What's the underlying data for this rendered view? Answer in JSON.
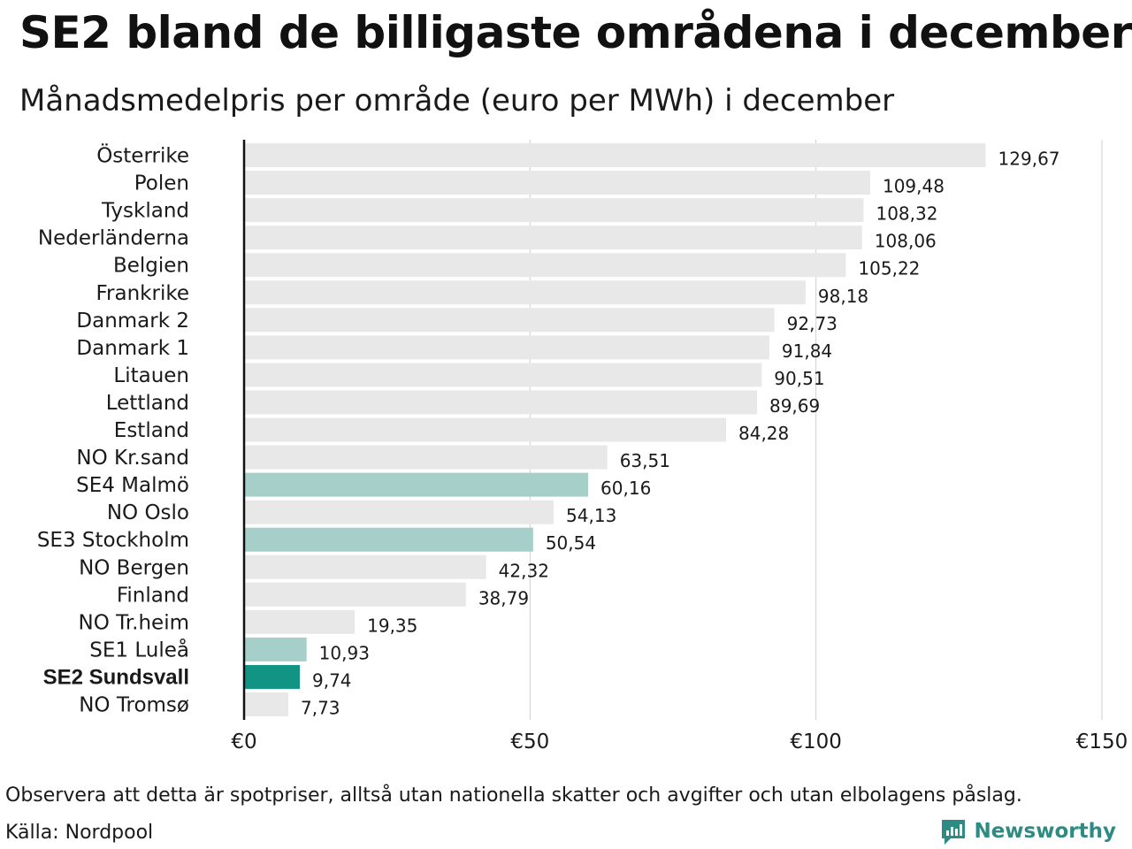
{
  "title": "SE2 bland de billigaste områdena i december",
  "subtitle": "Månadsmedelpris per område (euro per MWh) i december",
  "footer": {
    "note": "Observera att detta är spotpriser, alltså utan nationella skatter och avgifter och utan elbolagens påslag.",
    "source": "Källa: Nordpool"
  },
  "brand": {
    "name": "Newsworthy",
    "icon": "newsworthy-logo-icon",
    "color": "#2e8b84"
  },
  "chart_data": {
    "type": "bar",
    "orientation": "horizontal",
    "categories": [
      "Österrike",
      "Polen",
      "Tyskland",
      "Nederländerna",
      "Belgien",
      "Frankrike",
      "Danmark  2",
      "Danmark  1",
      "Litauen",
      "Lettland",
      "Estland",
      "NO Kr.sand",
      "SE4  Malmö",
      "NO Oslo",
      "SE3  Stockholm",
      "NO Bergen",
      "Finland",
      "NO Tr.heim",
      "SE1  Luleå",
      "SE2 Sundsvall",
      "NO Tromsø"
    ],
    "values": [
      129.67,
      109.48,
      108.32,
      108.06,
      105.22,
      98.18,
      92.73,
      91.84,
      90.51,
      89.69,
      84.28,
      63.51,
      60.16,
      54.13,
      50.54,
      42.32,
      38.79,
      19.35,
      10.93,
      9.74,
      7.73
    ],
    "value_labels": [
      "129,67",
      "109,48",
      "108,32",
      "108,06",
      "105,22",
      "98,18",
      "92,73",
      "91,84",
      "90,51",
      "89,69",
      "84,28",
      "63,51",
      "60,16",
      "54,13",
      "50,54",
      "42,32",
      "38,79",
      "19,35",
      "10,93",
      "9,74",
      "7,73"
    ],
    "highlight": [
      "none",
      "none",
      "none",
      "none",
      "none",
      "none",
      "none",
      "none",
      "none",
      "none",
      "none",
      "none",
      "light",
      "none",
      "light",
      "none",
      "none",
      "none",
      "light",
      "strong",
      "none"
    ],
    "bold_category": "SE2 Sundsvall",
    "colors": {
      "default": "#e8e8e8",
      "light": "#a6cfc9",
      "strong": "#129484"
    },
    "xlim": [
      0,
      150
    ],
    "xticks": [
      0,
      50,
      100,
      150
    ],
    "xtick_labels": [
      "€0",
      "€50",
      "€100",
      "€150"
    ],
    "grid": true
  }
}
